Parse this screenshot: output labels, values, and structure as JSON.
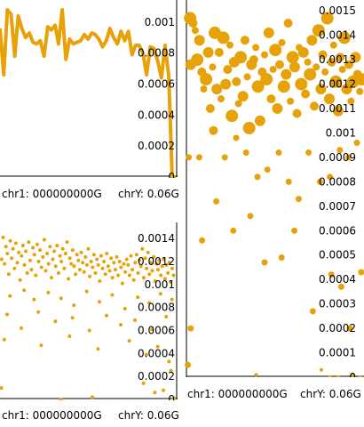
{
  "colors": {
    "series": "#e7a20a",
    "axis": "#000000",
    "background": "#ffffff"
  },
  "chart_data": [
    {
      "id": "top-left",
      "type": "line",
      "xlabel": "chr1: 000000000G",
      "xlabel_right": "chrY: 0.06G",
      "ylim": [
        0,
        0.00115
      ],
      "yticks": [
        "0",
        "0.0002",
        "0.0004",
        "0.0006",
        "0.0008",
        "0.001"
      ],
      "yticks_values": [
        0,
        0.0002,
        0.0004,
        0.0006,
        0.0008,
        0.001
      ],
      "x": [
        0,
        0.0013,
        0.0026,
        0.0039,
        0.0052,
        0.0064,
        0.0077,
        0.009,
        0.0103,
        0.0116,
        0.0129,
        0.0142,
        0.0155,
        0.0168,
        0.0181,
        0.0194,
        0.0206,
        0.0219,
        0.0232,
        0.0245,
        0.0258,
        0.0271,
        0.0284,
        0.0297,
        0.031,
        0.0323,
        0.0335,
        0.0348,
        0.0361,
        0.0374,
        0.0387,
        0.04,
        0.0413,
        0.0426,
        0.0439,
        0.0452,
        0.0465,
        0.0477,
        0.049,
        0.0503,
        0.0516,
        0.0529,
        0.0542,
        0.0555,
        0.0568,
        0.0581,
        0.0594,
        0.0606,
        0.0619
      ],
      "values": [
        0.00096,
        0.00066,
        0.00108,
        0.00105,
        0.00078,
        0.00104,
        0.00096,
        0.0009,
        0.00093,
        0.00087,
        0.00086,
        0.00088,
        0.00078,
        0.00097,
        0.00095,
        0.00098,
        0.00086,
        0.00108,
        0.00076,
        0.00089,
        0.00086,
        0.00087,
        0.00088,
        0.00092,
        0.00089,
        0.00093,
        0.00092,
        0.00089,
        0.00084,
        0.00088,
        0.00096,
        0.0009,
        0.00086,
        0.00094,
        0.00088,
        0.00094,
        0.00079,
        0.00085,
        0.00085,
        0.0008,
        0.00066,
        0.00084,
        0.00083,
        0.00075,
        0.00064,
        0.00085,
        0.00065,
        0.0,
        0.0
      ]
    },
    {
      "id": "right",
      "type": "scatter",
      "xlabel": "chr1: 000000000G",
      "xlabel_right": "chrY: 0.06G",
      "ylim": [
        0,
        0.00155
      ],
      "yticks": [
        "0",
        "0.0001",
        "0.0002",
        "0.0003",
        "0.0004",
        "0.0005",
        "0.0006",
        "0.0007",
        "0.0008",
        "0.0009",
        "0.001",
        "0.0011",
        "0.0012",
        "0.0013",
        "0.0014",
        "0.0015"
      ],
      "yticks_values": [
        0,
        0.0001,
        0.0002,
        0.0003,
        0.0004,
        0.0005,
        0.0006,
        0.0007,
        0.0008,
        0.0009,
        0.001,
        0.0011,
        0.0012,
        0.0013,
        0.0014,
        0.0015
      ],
      "points": [
        [
          0.0008,
          0.0009
        ],
        [
          0.0013,
          0.00147
        ],
        [
          0.0015,
          0.00128
        ],
        [
          0.0023,
          0.00145
        ],
        [
          0.0031,
          0.00142
        ],
        [
          0.0038,
          0.0013
        ],
        [
          0.0046,
          0.00138
        ],
        [
          0.0054,
          0.00125
        ],
        [
          0.0061,
          0.00118
        ],
        [
          0.0069,
          0.00122
        ],
        [
          0.0077,
          0.00133
        ],
        [
          0.0084,
          0.0011
        ],
        [
          0.0092,
          0.00127
        ],
        [
          0.01,
          0.00141
        ],
        [
          0.0107,
          0.00118
        ],
        [
          0.0115,
          0.00133
        ],
        [
          0.0122,
          0.00114
        ],
        [
          0.013,
          0.00139
        ],
        [
          0.0138,
          0.0012
        ],
        [
          0.0145,
          0.00126
        ],
        [
          0.0153,
          0.00136
        ],
        [
          0.016,
          0.00107
        ],
        [
          0.0168,
          0.00129
        ],
        [
          0.0176,
          0.00121
        ],
        [
          0.0183,
          0.00112
        ],
        [
          0.0191,
          0.00131
        ],
        [
          0.0199,
          0.00115
        ],
        [
          0.0206,
          0.00138
        ],
        [
          0.0214,
          0.00123
        ],
        [
          0.0221,
          0.00102
        ],
        [
          0.0229,
          0.00128
        ],
        [
          0.0237,
          0.0013
        ],
        [
          0.0244,
          0.00135
        ],
        [
          0.0252,
          0.00119
        ],
        [
          0.0259,
          0.00105
        ],
        [
          0.0267,
          0.00125
        ],
        [
          0.0275,
          0.00132
        ],
        [
          0.0282,
          0.00122
        ],
        [
          0.029,
          0.00141
        ],
        [
          0.0298,
          0.00114
        ],
        [
          0.0305,
          0.00126
        ],
        [
          0.0313,
          0.00134
        ],
        [
          0.032,
          0.0011
        ],
        [
          0.0328,
          0.00128
        ],
        [
          0.0336,
          0.00137
        ],
        [
          0.0343,
          0.00119
        ],
        [
          0.0351,
          0.00124
        ],
        [
          0.0358,
          0.00145
        ],
        [
          0.0366,
          0.00113
        ],
        [
          0.0374,
          0.00131
        ],
        [
          0.0381,
          0.00127
        ],
        [
          0.0389,
          0.00108
        ],
        [
          0.0397,
          0.00135
        ],
        [
          0.0404,
          0.0012
        ],
        [
          0.0412,
          0.00133
        ],
        [
          0.0419,
          0.00116
        ],
        [
          0.0427,
          0.00129
        ],
        [
          0.0435,
          0.00124
        ],
        [
          0.0442,
          0.00138
        ],
        [
          0.045,
          0.00111
        ],
        [
          0.0457,
          0.00127
        ],
        [
          0.0465,
          0.00142
        ],
        [
          0.0473,
          0.00118
        ],
        [
          0.048,
          0.00132
        ],
        [
          0.0488,
          0.00125
        ],
        [
          0.0496,
          0.00147
        ],
        [
          0.0503,
          0.00114
        ],
        [
          0.0511,
          0.00129
        ],
        [
          0.0518,
          0.00136
        ],
        [
          0.0526,
          0.00121
        ],
        [
          0.0534,
          0.00109
        ],
        [
          0.0541,
          0.00131
        ],
        [
          0.0549,
          0.00126
        ],
        [
          0.0556,
          0.00139
        ],
        [
          0.0564,
          0.00118
        ],
        [
          0.0572,
          0.00128
        ],
        [
          0.0579,
          0.00113
        ],
        [
          0.0587,
          0.00121
        ],
        [
          0.0595,
          0.00131
        ],
        [
          0.0602,
          0.00124
        ],
        [
          0.061,
          0.00117
        ],
        [
          0.0617,
          0.00122
        ],
        [
          0.0045,
          0.0009
        ],
        [
          0.0095,
          0.00101
        ],
        [
          0.0135,
          0.0009
        ],
        [
          0.0175,
          0.00098
        ],
        [
          0.021,
          0.00092
        ],
        [
          0.025,
          0.00082
        ],
        [
          0.0285,
          0.00085
        ],
        [
          0.0325,
          0.00092
        ],
        [
          0.036,
          0.0008
        ],
        [
          0.0395,
          0.00073
        ],
        [
          0.043,
          0.00092
        ],
        [
          0.047,
          0.0008
        ],
        [
          0.0505,
          0.00082
        ],
        [
          0.054,
          0.00093
        ],
        [
          0.057,
          0.0009
        ],
        [
          0.06,
          0.00096
        ],
        [
          0.0015,
          0.0002
        ],
        [
          0.0055,
          0.00056
        ],
        [
          0.0105,
          0.00072
        ],
        [
          0.0165,
          0.0006
        ],
        [
          0.0225,
          0.00066
        ],
        [
          0.0275,
          0.00047
        ],
        [
          0.0335,
          0.00049
        ],
        [
          0.038,
          0.0006
        ],
        [
          0.0445,
          0.00027
        ],
        [
          0.051,
          0.00042
        ],
        [
          0.0545,
          0.00037
        ],
        [
          0.0575,
          0.0002
        ],
        [
          0.0615,
          0.00043
        ],
        [
          0.0005,
          5e-05
        ],
        [
          0.0245,
          1e-05
        ],
        [
          0.0475,
          3e-05
        ],
        [
          0.0505,
          0.0
        ],
        [
          0.0535,
          0.0
        ],
        [
          0.0585,
          1e-05
        ],
        [
          0.0612,
          0.0
        ]
      ]
    },
    {
      "id": "bottom-left",
      "type": "scatter",
      "xlabel": "chr1: 000000000G",
      "xlabel_right": "chrY: 0.06G",
      "ylim": [
        0,
        0.00155
      ],
      "yticks": [
        "0",
        "0.0002",
        "0.0004",
        "0.0006",
        "0.0008",
        "0.001",
        "0.0012",
        "0.0014"
      ],
      "yticks_values": [
        0,
        0.0002,
        0.0004,
        0.0006,
        0.0008,
        0.001,
        0.0012,
        0.0014
      ],
      "points": [
        [
          0.0006,
          0.00122
        ],
        [
          0.0011,
          0.00141
        ],
        [
          0.0016,
          0.00118
        ],
        [
          0.0021,
          0.00133
        ],
        [
          0.0026,
          0.00127
        ],
        [
          0.0031,
          0.00109
        ],
        [
          0.0036,
          0.00138
        ],
        [
          0.0041,
          0.00123
        ],
        [
          0.0046,
          0.00131
        ],
        [
          0.0051,
          0.00114
        ],
        [
          0.0056,
          0.00136
        ],
        [
          0.0061,
          0.00119
        ],
        [
          0.0066,
          0.00128
        ],
        [
          0.0071,
          0.00104
        ],
        [
          0.0076,
          0.00125
        ],
        [
          0.0081,
          0.00134
        ],
        [
          0.0086,
          0.00117
        ],
        [
          0.0091,
          0.00129
        ],
        [
          0.0096,
          0.0011
        ],
        [
          0.0101,
          0.00137
        ],
        [
          0.0106,
          0.00121
        ],
        [
          0.0111,
          0.00113
        ],
        [
          0.0116,
          0.00132
        ],
        [
          0.0121,
          0.00126
        ],
        [
          0.0126,
          0.00108
        ],
        [
          0.0131,
          0.00135
        ],
        [
          0.0136,
          0.0012
        ],
        [
          0.0141,
          0.0013
        ],
        [
          0.0146,
          0.00115
        ],
        [
          0.0151,
          0.00124
        ],
        [
          0.0156,
          0.00139
        ],
        [
          0.0161,
          0.00112
        ],
        [
          0.0166,
          0.00127
        ],
        [
          0.0171,
          0.00118
        ],
        [
          0.0176,
          0.00133
        ],
        [
          0.0181,
          0.00106
        ],
        [
          0.0186,
          0.00122
        ],
        [
          0.0191,
          0.00129
        ],
        [
          0.0196,
          0.00116
        ],
        [
          0.0201,
          0.00134
        ],
        [
          0.0206,
          0.0011
        ],
        [
          0.0211,
          0.00125
        ],
        [
          0.0216,
          0.0012
        ],
        [
          0.0221,
          0.00131
        ],
        [
          0.0226,
          0.00114
        ],
        [
          0.0231,
          0.00127
        ],
        [
          0.0236,
          0.00137
        ],
        [
          0.0241,
          0.00105
        ],
        [
          0.0246,
          0.00123
        ],
        [
          0.0251,
          0.00118
        ],
        [
          0.0256,
          0.0013
        ],
        [
          0.0261,
          0.00116
        ],
        [
          0.0266,
          0.00109
        ],
        [
          0.0271,
          0.00126
        ],
        [
          0.0276,
          0.00121
        ],
        [
          0.0281,
          0.00113
        ],
        [
          0.0286,
          0.00128
        ],
        [
          0.0291,
          0.00119
        ],
        [
          0.0296,
          0.00111
        ],
        [
          0.0301,
          0.00124
        ],
        [
          0.0306,
          0.00117
        ],
        [
          0.0311,
          0.00131
        ],
        [
          0.0316,
          0.00107
        ],
        [
          0.0321,
          0.0012
        ],
        [
          0.0326,
          0.00115
        ],
        [
          0.0331,
          0.00126
        ],
        [
          0.0336,
          0.0011
        ],
        [
          0.0341,
          0.00122
        ],
        [
          0.0346,
          0.00117
        ],
        [
          0.0351,
          0.00103
        ],
        [
          0.0356,
          0.00125
        ],
        [
          0.0361,
          0.00114
        ],
        [
          0.0366,
          0.0012
        ],
        [
          0.0371,
          0.00109
        ],
        [
          0.0376,
          0.00127
        ],
        [
          0.0381,
          0.00116
        ],
        [
          0.0386,
          0.00112
        ],
        [
          0.0391,
          0.00123
        ],
        [
          0.0396,
          0.00106
        ],
        [
          0.0401,
          0.00119
        ],
        [
          0.0406,
          0.00113
        ],
        [
          0.0411,
          0.00124
        ],
        [
          0.0416,
          0.00108
        ],
        [
          0.0421,
          0.0012
        ],
        [
          0.0426,
          0.00115
        ],
        [
          0.0431,
          0.00101
        ],
        [
          0.0436,
          0.00118
        ],
        [
          0.0441,
          0.00111
        ],
        [
          0.0446,
          0.00122
        ],
        [
          0.0451,
          0.00117
        ],
        [
          0.0456,
          0.00108
        ],
        [
          0.0461,
          0.00125
        ],
        [
          0.0466,
          0.00113
        ],
        [
          0.0471,
          0.00104
        ],
        [
          0.0476,
          0.00119
        ],
        [
          0.0481,
          0.00126
        ],
        [
          0.0486,
          0.0011
        ],
        [
          0.0491,
          0.00121
        ],
        [
          0.0496,
          0.00116
        ],
        [
          0.0501,
          0.00131
        ],
        [
          0.0506,
          0.00106
        ],
        [
          0.0511,
          0.00123
        ],
        [
          0.0516,
          0.00114
        ],
        [
          0.0521,
          0.00128
        ],
        [
          0.0526,
          0.00109
        ],
        [
          0.0531,
          0.00119
        ],
        [
          0.0536,
          0.00112
        ],
        [
          0.0541,
          0.00124
        ],
        [
          0.0546,
          0.00103
        ],
        [
          0.0551,
          0.00118
        ],
        [
          0.0556,
          0.00113
        ],
        [
          0.0561,
          0.00121
        ],
        [
          0.0566,
          0.00108
        ],
        [
          0.0571,
          0.00116
        ],
        [
          0.0576,
          0.00122
        ],
        [
          0.0581,
          0.00105
        ],
        [
          0.0586,
          0.00117
        ],
        [
          0.0591,
          0.0011
        ],
        [
          0.0596,
          0.00119
        ],
        [
          0.0601,
          0.00102
        ],
        [
          0.0606,
          0.00114
        ],
        [
          0.0611,
          0.00108
        ],
        [
          0.0035,
          0.0009
        ],
        [
          0.0085,
          0.00095
        ],
        [
          0.012,
          0.00087
        ],
        [
          0.017,
          0.00093
        ],
        [
          0.0215,
          0.00088
        ],
        [
          0.026,
          0.00082
        ],
        [
          0.0305,
          0.00094
        ],
        [
          0.035,
          0.00085
        ],
        [
          0.0395,
          0.00091
        ],
        [
          0.044,
          0.00079
        ],
        [
          0.0485,
          0.00089
        ],
        [
          0.0525,
          0.00084
        ],
        [
          0.0565,
          0.00092
        ],
        [
          0.0605,
          0.00087
        ],
        [
          0.0025,
          0.00074
        ],
        [
          0.0075,
          0.00062
        ],
        [
          0.0135,
          0.00076
        ],
        [
          0.0195,
          0.00068
        ],
        [
          0.0255,
          0.00071
        ],
        [
          0.0315,
          0.0006
        ],
        [
          0.0375,
          0.00073
        ],
        [
          0.0425,
          0.00065
        ],
        [
          0.0475,
          0.00069
        ],
        [
          0.0535,
          0.00061
        ],
        [
          0.0585,
          0.00072
        ],
        [
          0.0015,
          0.00052
        ],
        [
          0.0145,
          0.00047
        ],
        [
          0.0245,
          0.00055
        ],
        [
          0.0345,
          0.00044
        ],
        [
          0.0455,
          0.00051
        ],
        [
          0.0515,
          0.00039
        ],
        [
          0.0555,
          0.00046
        ],
        [
          0.0595,
          0.00033
        ],
        [
          0.0005,
          0.0001
        ],
        [
          0.0215,
          0.0
        ],
        [
          0.0325,
          2e-05
        ],
        [
          0.0505,
          0.00014
        ],
        [
          0.0545,
          6e-05
        ],
        [
          0.0575,
          8e-05
        ],
        [
          0.0602,
          0.00025
        ],
        [
          0.0614,
          1e-05
        ]
      ]
    }
  ]
}
